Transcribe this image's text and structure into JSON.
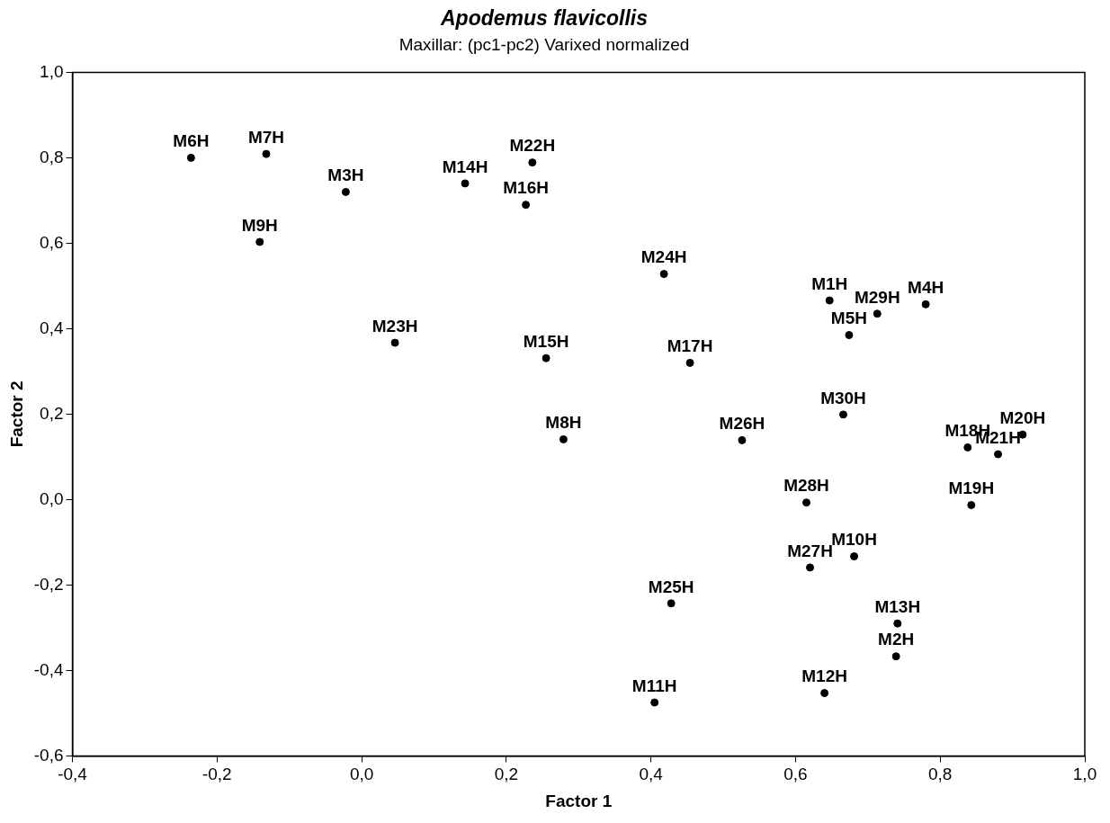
{
  "chart_data": {
    "type": "scatter",
    "title": "Apodemus flavicollis",
    "subtitle": "Maxillar: (pc1-pc2) Varixed normalized",
    "xlabel": "Factor 1",
    "ylabel": "Factor 2",
    "xlim": [
      -0.4,
      1.0
    ],
    "ylim": [
      -0.6,
      1.0
    ],
    "xticks": [
      {
        "value": -0.4,
        "label": "-0,4"
      },
      {
        "value": -0.2,
        "label": "-0,2"
      },
      {
        "value": 0,
        "label": "0,0"
      },
      {
        "value": 0.2,
        "label": "0,2"
      },
      {
        "value": 0.4,
        "label": "0,4"
      },
      {
        "value": 0.6,
        "label": "0,6"
      },
      {
        "value": 0.8,
        "label": "0,8"
      },
      {
        "value": 1.0,
        "label": "1,0"
      }
    ],
    "yticks": [
      {
        "value": -0.6,
        "label": "-0,6"
      },
      {
        "value": -0.4,
        "label": "-0,4"
      },
      {
        "value": -0.2,
        "label": "-0,2"
      },
      {
        "value": 0,
        "label": "0,0"
      },
      {
        "value": 0.2,
        "label": "0,2"
      },
      {
        "value": 0.4,
        "label": "0,4"
      },
      {
        "value": 0.6,
        "label": "0,6"
      },
      {
        "value": 0.8,
        "label": "0,8"
      },
      {
        "value": 1.0,
        "label": "1,0"
      }
    ],
    "grid": false,
    "legend": false,
    "marker": "circle",
    "series": [
      {
        "color": "#000000",
        "x": [
          -0.236,
          -0.132,
          -0.022,
          -0.141,
          0.143,
          0.236,
          0.227,
          0.418,
          0.647,
          0.713,
          0.78,
          0.674,
          0.046,
          0.255,
          0.454,
          0.666,
          0.279,
          0.526,
          0.838,
          0.914,
          0.88,
          0.843,
          0.615,
          0.681,
          0.62,
          0.428,
          0.741,
          0.739,
          0.64,
          0.405
        ],
        "values": [
          0.8,
          0.809,
          0.72,
          0.603,
          0.74,
          0.789,
          0.69,
          0.528,
          0.466,
          0.435,
          0.457,
          0.385,
          0.367,
          0.331,
          0.32,
          0.199,
          0.141,
          0.139,
          0.122,
          0.152,
          0.106,
          -0.013,
          -0.007,
          -0.133,
          -0.159,
          -0.243,
          -0.29,
          -0.367,
          -0.453,
          -0.475
        ]
      }
    ],
    "annotations": [
      {
        "text": "M6H",
        "x": -0.236,
        "y": 0.8
      },
      {
        "text": "M7H",
        "x": -0.132,
        "y": 0.809
      },
      {
        "text": "M3H",
        "x": -0.022,
        "y": 0.72
      },
      {
        "text": "M9H",
        "x": -0.141,
        "y": 0.603
      },
      {
        "text": "M14H",
        "x": 0.143,
        "y": 0.74
      },
      {
        "text": "M22H",
        "x": 0.236,
        "y": 0.789
      },
      {
        "text": "M16H",
        "x": 0.227,
        "y": 0.69
      },
      {
        "text": "M24H",
        "x": 0.418,
        "y": 0.528
      },
      {
        "text": "M1H",
        "x": 0.647,
        "y": 0.466
      },
      {
        "text": "M29H",
        "x": 0.713,
        "y": 0.435
      },
      {
        "text": "M4H",
        "x": 0.78,
        "y": 0.457
      },
      {
        "text": "M5H",
        "x": 0.674,
        "y": 0.385
      },
      {
        "text": "M23H",
        "x": 0.046,
        "y": 0.367
      },
      {
        "text": "M15H",
        "x": 0.255,
        "y": 0.331
      },
      {
        "text": "M17H",
        "x": 0.454,
        "y": 0.32
      },
      {
        "text": "M30H",
        "x": 0.666,
        "y": 0.199
      },
      {
        "text": "M8H",
        "x": 0.279,
        "y": 0.141
      },
      {
        "text": "M26H",
        "x": 0.526,
        "y": 0.139
      },
      {
        "text": "M18H",
        "x": 0.838,
        "y": 0.122
      },
      {
        "text": "M20H",
        "x": 0.914,
        "y": 0.152
      },
      {
        "text": "M21H",
        "x": 0.88,
        "y": 0.106
      },
      {
        "text": "M19H",
        "x": 0.843,
        "y": -0.013
      },
      {
        "text": "M28H",
        "x": 0.615,
        "y": -0.007
      },
      {
        "text": "M10H",
        "x": 0.681,
        "y": -0.133
      },
      {
        "text": "M27H",
        "x": 0.62,
        "y": -0.159
      },
      {
        "text": "M25H",
        "x": 0.428,
        "y": -0.243
      },
      {
        "text": "M13H",
        "x": 0.741,
        "y": -0.29
      },
      {
        "text": "M2H",
        "x": 0.739,
        "y": -0.367
      },
      {
        "text": "M12H",
        "x": 0.64,
        "y": -0.453
      },
      {
        "text": "M11H",
        "x": 0.405,
        "y": -0.475
      }
    ]
  }
}
